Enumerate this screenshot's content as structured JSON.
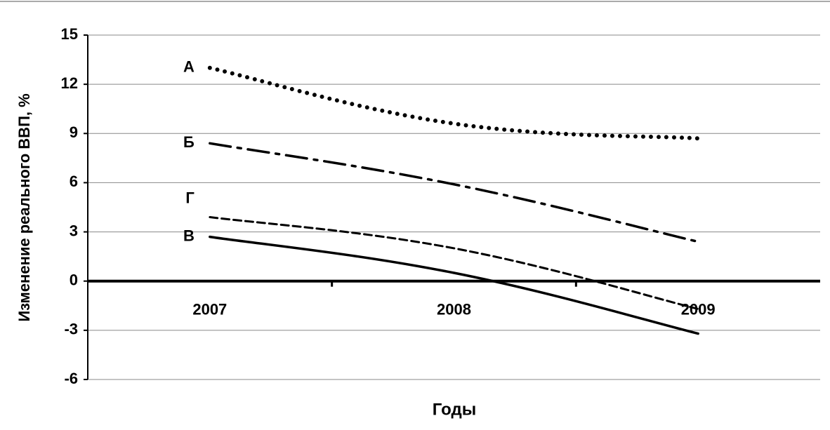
{
  "chart_data": {
    "type": "line",
    "y_label": "Изменение реального ВВП, %",
    "x_label": "Годы",
    "categories": [
      "2007",
      "2008",
      "2009"
    ],
    "series": [
      {
        "name": "А",
        "color": "#000000",
        "style": "dotted",
        "values": [
          13,
          9.6,
          8.7
        ]
      },
      {
        "name": "Б",
        "color": "#000000",
        "style": "dash-dot",
        "values": [
          8.4,
          5.9,
          2.4
        ]
      },
      {
        "name": "Г",
        "color": "#000000",
        "style": "dashed",
        "values": [
          3.9,
          2.0,
          -1.7
        ]
      },
      {
        "name": "В",
        "color": "#000000",
        "style": "solid",
        "values": [
          2.7,
          0.5,
          -3.2
        ]
      }
    ],
    "ylim": [
      -6,
      15
    ],
    "yticks": [
      -6,
      -3,
      0,
      3,
      6,
      9,
      12,
      15
    ],
    "grid": true
  }
}
